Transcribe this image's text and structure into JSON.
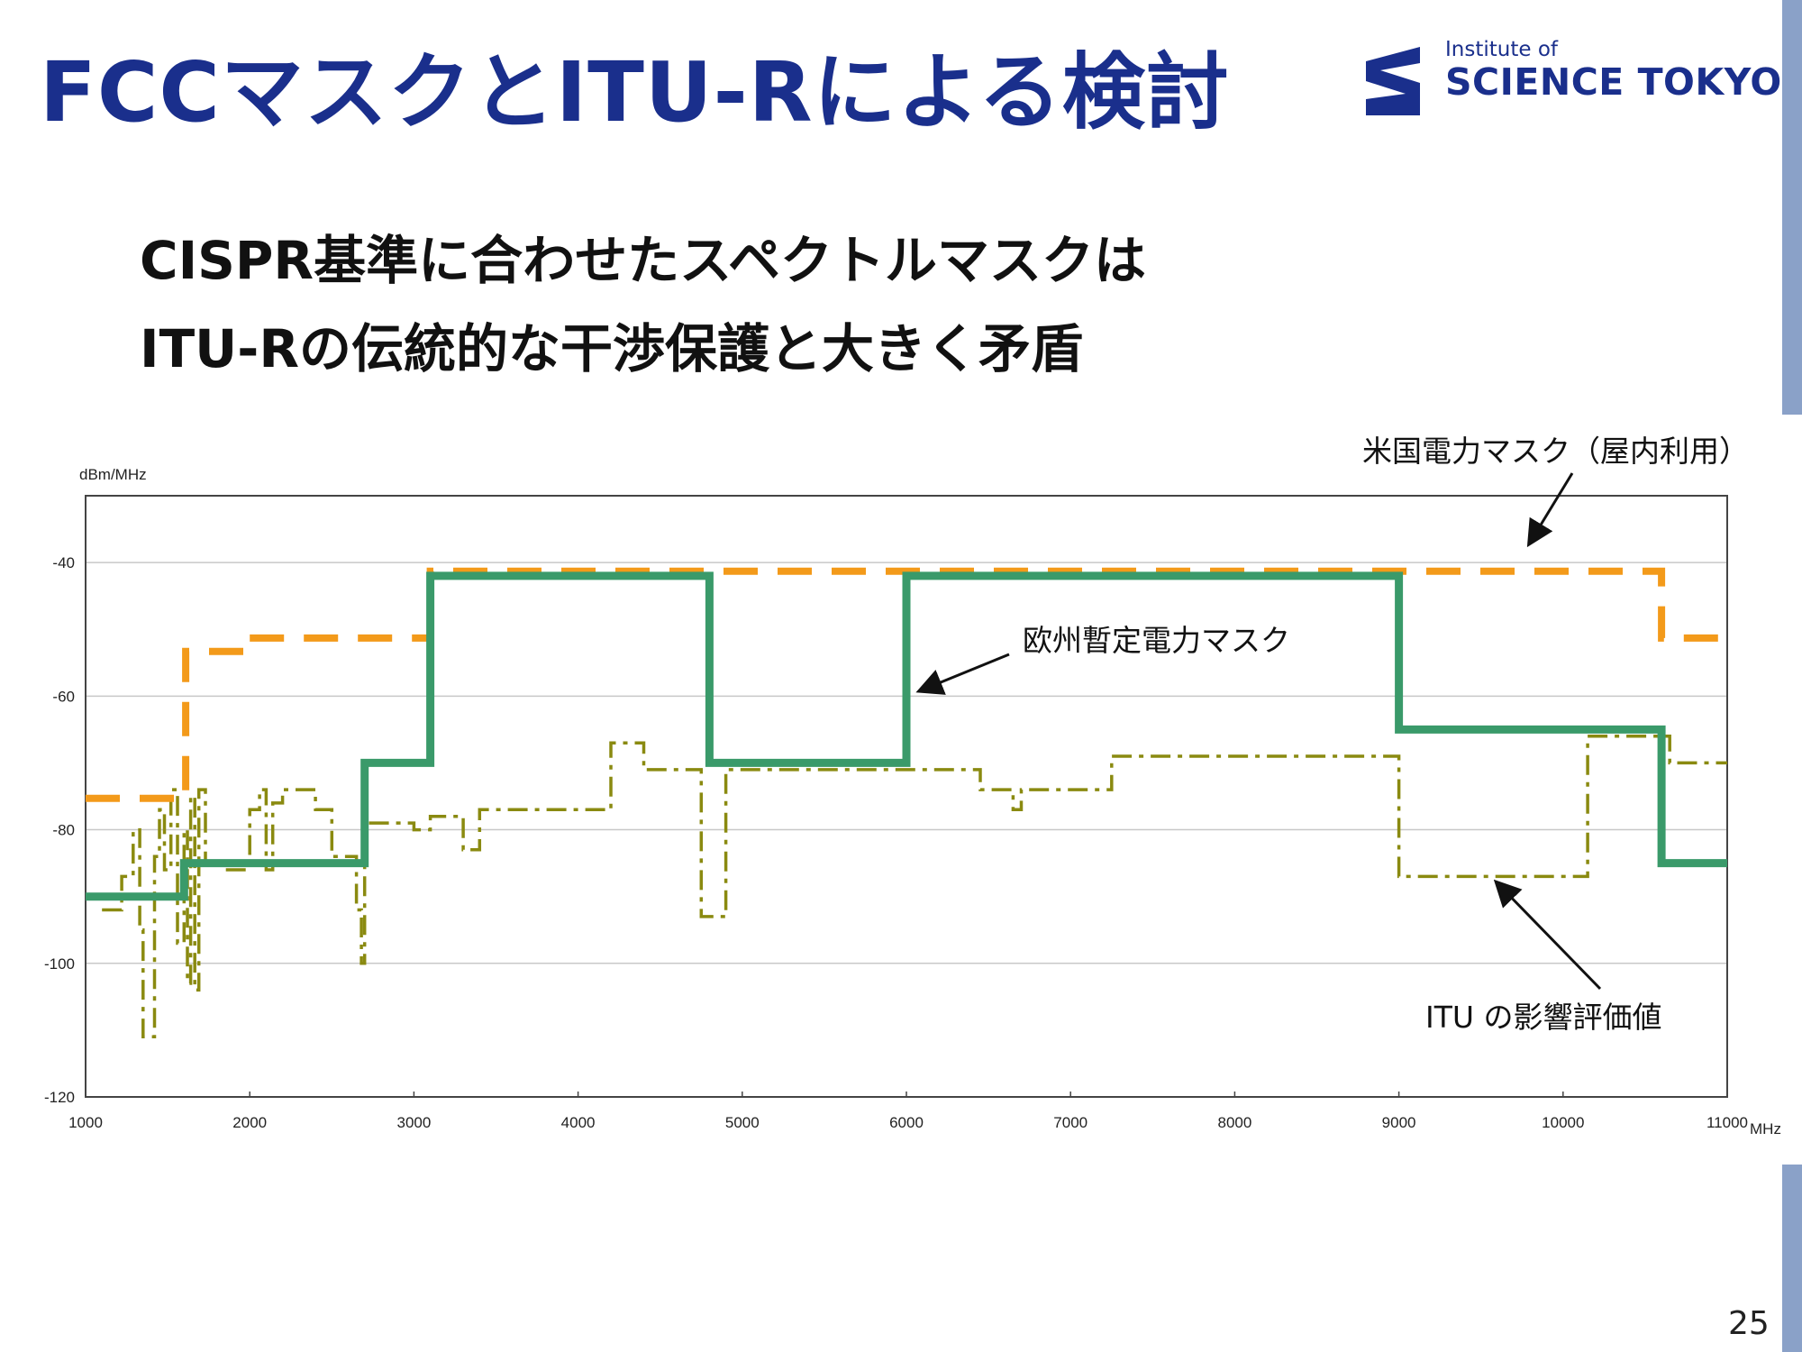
{
  "slide": {
    "title": "FCCマスクとITU-Rによる検討",
    "lead_line1": "CISPR基準に合わせたスペクトルマスクは",
    "lead_line2": "ITU-Rの伝統的な干渉保護と大きく矛盾",
    "page_number": "25"
  },
  "logo": {
    "line1": "Institute of",
    "line2": "SCIENCE TOKYO",
    "color": "#1a2f8c"
  },
  "chart_data": {
    "type": "line",
    "ylabel": "dBm/MHz",
    "xlabel": "MHz",
    "xlim": [
      1000,
      11000
    ],
    "ylim": [
      -120,
      -30
    ],
    "x_ticks": [
      1000,
      2000,
      3000,
      4000,
      5000,
      6000,
      7000,
      8000,
      9000,
      10000,
      11000
    ],
    "y_ticks": [
      -40,
      -60,
      -80,
      -100,
      -120
    ],
    "grid": true,
    "series": [
      {
        "name": "米国電力マスク（屋内利用）",
        "color": "#f39a1a",
        "style": "dashed",
        "points": [
          [
            1000,
            -75.3
          ],
          [
            1610,
            -75.3
          ],
          [
            1610,
            -53.3
          ],
          [
            1990,
            -53.3
          ],
          [
            1990,
            -51.3
          ],
          [
            3100,
            -51.3
          ],
          [
            3100,
            -41.3
          ],
          [
            10600,
            -41.3
          ],
          [
            10600,
            -51.3
          ],
          [
            11000,
            -51.3
          ]
        ]
      },
      {
        "name": "欧州暫定電力マスク",
        "color": "#3a9a6a",
        "style": "solid",
        "points": [
          [
            1000,
            -90
          ],
          [
            1600,
            -90
          ],
          [
            1600,
            -85
          ],
          [
            2700,
            -85
          ],
          [
            2700,
            -70
          ],
          [
            3100,
            -70
          ],
          [
            3100,
            -42
          ],
          [
            4800,
            -42
          ],
          [
            4800,
            -70
          ],
          [
            6000,
            -70
          ],
          [
            6000,
            -42
          ],
          [
            9000,
            -42
          ],
          [
            9000,
            -65
          ],
          [
            10600,
            -65
          ],
          [
            10600,
            -85
          ],
          [
            11000,
            -85
          ]
        ]
      },
      {
        "name": "ITU の影響評価値",
        "color": "#8a8a10",
        "style": "dashdot",
        "points": [
          [
            1100,
            -92
          ],
          [
            1220,
            -92
          ],
          [
            1220,
            -87
          ],
          [
            1290,
            -87
          ],
          [
            1290,
            -80
          ],
          [
            1330,
            -80
          ],
          [
            1330,
            -95
          ],
          [
            1350,
            -95
          ],
          [
            1350,
            -111
          ],
          [
            1420,
            -111
          ],
          [
            1420,
            -84
          ],
          [
            1450,
            -84
          ],
          [
            1450,
            -77
          ],
          [
            1480,
            -77
          ],
          [
            1480,
            -86
          ],
          [
            1520,
            -86
          ],
          [
            1520,
            -74
          ],
          [
            1560,
            -74
          ],
          [
            1560,
            -97
          ],
          [
            1600,
            -97
          ],
          [
            1600,
            -80
          ],
          [
            1620,
            -80
          ],
          [
            1620,
            -103
          ],
          [
            1640,
            -103
          ],
          [
            1640,
            -75
          ],
          [
            1665,
            -75
          ],
          [
            1665,
            -104
          ],
          [
            1690,
            -104
          ],
          [
            1690,
            -74
          ],
          [
            1730,
            -74
          ],
          [
            1730,
            -85
          ],
          [
            1850,
            -85
          ],
          [
            1850,
            -86
          ],
          [
            2000,
            -86
          ],
          [
            2000,
            -77
          ],
          [
            2060,
            -77
          ],
          [
            2060,
            -74
          ],
          [
            2100,
            -74
          ],
          [
            2100,
            -86
          ],
          [
            2140,
            -86
          ],
          [
            2140,
            -76
          ],
          [
            2200,
            -76
          ],
          [
            2200,
            -74
          ],
          [
            2400,
            -74
          ],
          [
            2400,
            -77
          ],
          [
            2500,
            -77
          ],
          [
            2500,
            -84
          ],
          [
            2650,
            -84
          ],
          [
            2650,
            -92
          ],
          [
            2680,
            -92
          ],
          [
            2680,
            -100
          ],
          [
            2700,
            -100
          ],
          [
            2700,
            -79
          ],
          [
            3000,
            -79
          ],
          [
            3000,
            -80
          ],
          [
            3100,
            -80
          ],
          [
            3100,
            -78
          ],
          [
            3300,
            -78
          ],
          [
            3300,
            -83
          ],
          [
            3400,
            -83
          ],
          [
            3400,
            -77
          ],
          [
            4200,
            -77
          ],
          [
            4200,
            -67
          ],
          [
            4400,
            -67
          ],
          [
            4400,
            -71
          ],
          [
            4750,
            -71
          ],
          [
            4750,
            -93
          ],
          [
            4900,
            -93
          ],
          [
            4900,
            -71
          ],
          [
            5900,
            -71
          ],
          [
            5900,
            -71
          ],
          [
            6450,
            -71
          ],
          [
            6450,
            -74
          ],
          [
            6650,
            -74
          ],
          [
            6650,
            -77
          ],
          [
            6700,
            -77
          ],
          [
            6700,
            -74
          ],
          [
            7250,
            -74
          ],
          [
            7250,
            -69
          ],
          [
            9000,
            -69
          ],
          [
            9000,
            -87
          ],
          [
            10150,
            -87
          ],
          [
            10150,
            -66
          ],
          [
            10650,
            -66
          ],
          [
            10650,
            -70
          ],
          [
            11000,
            -70
          ]
        ]
      }
    ],
    "annotations": [
      {
        "text": "米国電力マスク（屋内利用）"
      },
      {
        "text": "欧州暫定電力マスク"
      },
      {
        "text": "ITU の影響評価値"
      }
    ]
  }
}
